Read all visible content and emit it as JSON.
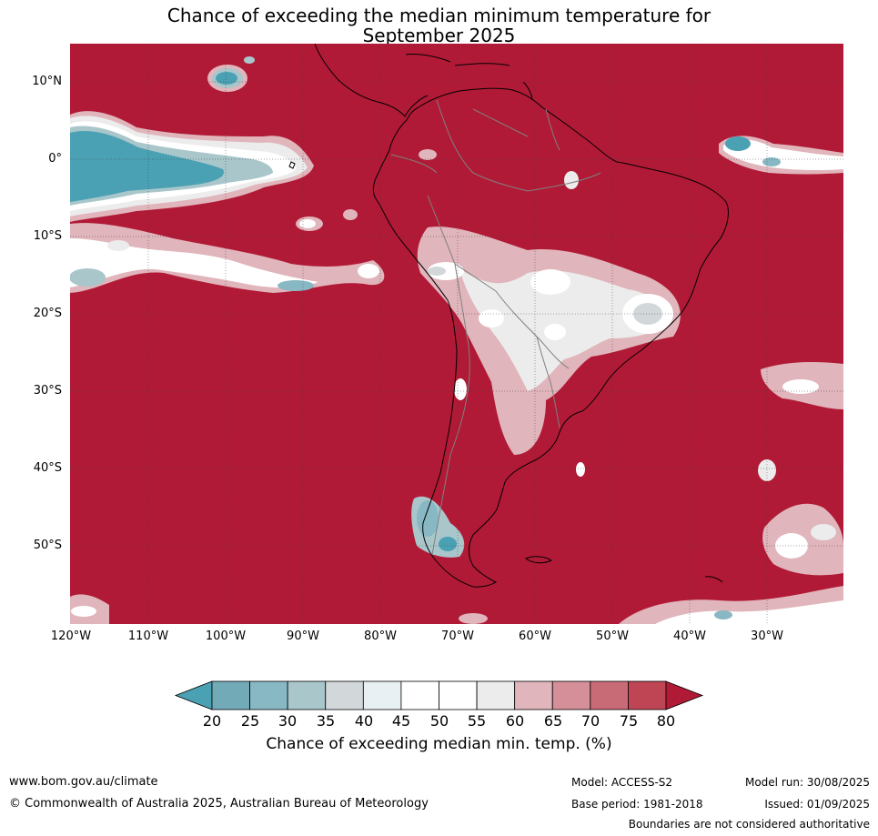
{
  "title": {
    "line1": "Chance of exceeding the median minimum temperature for",
    "line2": "September 2025"
  },
  "map": {
    "lat_labels": [
      "10°N",
      "0°",
      "10°S",
      "20°S",
      "30°S",
      "40°S",
      "50°S"
    ],
    "lon_labels": [
      "120°W",
      "110°W",
      "100°W",
      "90°W",
      "80°W",
      "70°W",
      "60°W",
      "50°W",
      "40°W",
      "30°W"
    ],
    "colors": {
      "background": "#b11a36",
      "c60": "#e0b5bb",
      "c55": "#ececec",
      "white": "#ffffff",
      "c40": "#e8f0f3",
      "c35": "#d2d8da",
      "c30": "#a9c6cb",
      "c25": "#88b8c4",
      "c20": "#72abb7",
      "low": "#4aa1b3",
      "coast": "#000000",
      "border": "#808080",
      "grid": "#3a3a3a"
    }
  },
  "colorbar": {
    "ticks": [
      "20",
      "25",
      "30",
      "35",
      "40",
      "45",
      "50",
      "55",
      "60",
      "65",
      "70",
      "75",
      "80"
    ],
    "colors": [
      "#4aa1b3",
      "#72abb7",
      "#88b8c4",
      "#a9c6cb",
      "#d2d8da",
      "#e8f0f3",
      "#ffffff",
      "#ffffff",
      "#ececec",
      "#e0b5bb",
      "#d48f98",
      "#c96b77",
      "#bf4555",
      "#b11a36"
    ],
    "label": "Chance of exceeding median min. temp. (%)"
  },
  "footer": {
    "website": "www.bom.gov.au/climate",
    "copyright": "© Commonwealth of Australia 2025, Australian Bureau of Meteorology",
    "model": "Model: ACCESS-S2",
    "base_period": "Base period: 1981-2018",
    "model_run": "Model run: 30/08/2025",
    "issued": "Issued: 01/09/2025",
    "disclaimer": "Boundaries are not considered authoritative"
  }
}
